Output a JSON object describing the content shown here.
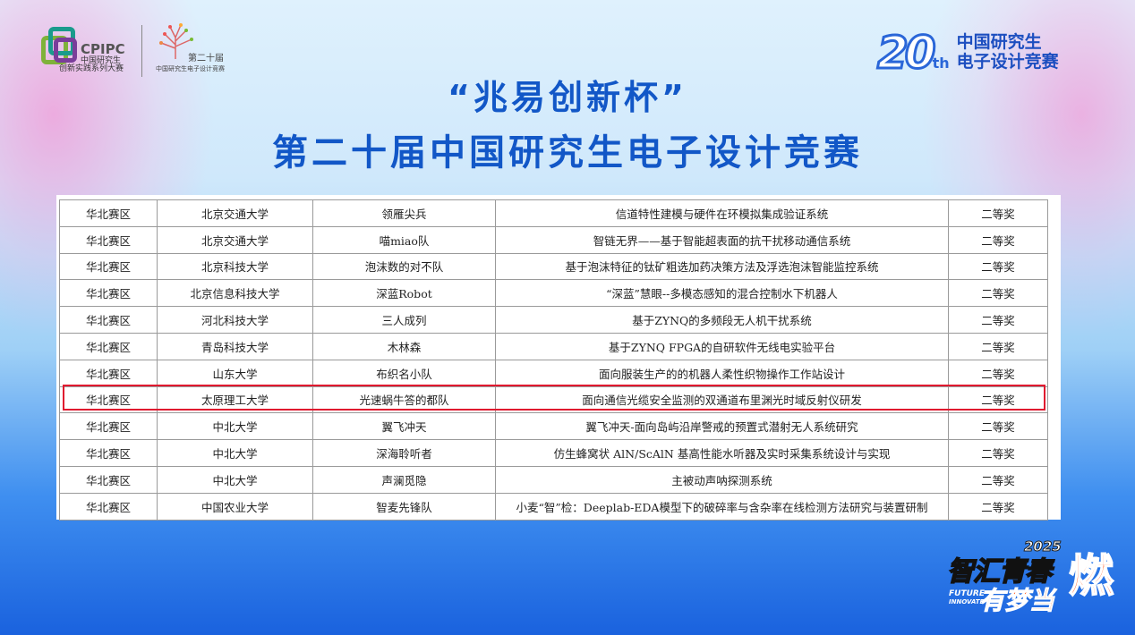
{
  "header": {
    "cpipc_logo": {
      "abbr": "CPIPC",
      "line1": "中国研究生",
      "line2": "创新实践系列大赛"
    },
    "edition_logo": {
      "edition": "第二十届",
      "name": "中国研究生电子设计竞赛"
    },
    "brand_right": {
      "number": "20",
      "suffix": "th",
      "line1": "中国研究生",
      "line2": "电子设计竞赛"
    },
    "title_line1": "“兆易创新杯”",
    "title_line2": "第二十届中国研究生电子设计竞赛"
  },
  "table": {
    "rows": [
      [
        "华北赛区",
        "北京交通大学",
        "领雁尖兵",
        "信道特性建模与硬件在环模拟集成验证系统",
        "二等奖"
      ],
      [
        "华北赛区",
        "北京交通大学",
        "喵miao队",
        "智链无界——基于智能超表面的抗干扰移动通信系统",
        "二等奖"
      ],
      [
        "华北赛区",
        "北京科技大学",
        "泡沫数的对不队",
        "基于泡沫特征的钛矿粗选加药决策方法及浮选泡沫智能监控系统",
        "二等奖"
      ],
      [
        "华北赛区",
        "北京信息科技大学",
        "深蓝Robot",
        "“深蓝”慧眼--多模态感知的混合控制水下机器人",
        "二等奖"
      ],
      [
        "华北赛区",
        "河北科技大学",
        "三人成列",
        "基于ZYNQ的多频段无人机干扰系统",
        "二等奖"
      ],
      [
        "华北赛区",
        "青岛科技大学",
        "木林森",
        "基于ZYNQ FPGA的自研软件无线电实验平台",
        "二等奖"
      ],
      [
        "华北赛区",
        "山东大学",
        "布织名小队",
        "面向服装生产的的机器人柔性织物操作工作站设计",
        "二等奖"
      ],
      [
        "华北赛区",
        "太原理工大学",
        "光速蜗牛答的都队",
        "面向通信光缆安全监测的双通道布里渊光时域反射仪研发",
        "二等奖"
      ],
      [
        "华北赛区",
        "中北大学",
        "翼飞冲天",
        "翼飞冲天-面向岛屿沿岸警戒的预置式潜射无人系统研究",
        "二等奖"
      ],
      [
        "华北赛区",
        "中北大学",
        "深海聆听者",
        "仿生蜂窝状 AlN/ScAlN 基高性能水听器及实时采集系统设计与实现",
        "二等奖"
      ],
      [
        "华北赛区",
        "中北大学",
        "声澜觅隐",
        "主被动声呐探测系统",
        "二等奖"
      ],
      [
        "华北赛区",
        "中国农业大学",
        "智麦先锋队",
        "小麦“智”检：Deeplab-EDA模型下的破碎率与含杂率在线检测方法研究与装置研制",
        "二等奖"
      ]
    ],
    "highlighted_row": 7,
    "highlight_color": "#e0192f"
  },
  "footer_logo": {
    "year": "2025",
    "line1": "智汇青春",
    "line2": "有梦当",
    "burn": "燃",
    "tag1": "FUTURE",
    "tag2": "INNOVATE"
  },
  "colors": {
    "title": "#1257c7",
    "accent_orange": "#ff5a1f"
  }
}
